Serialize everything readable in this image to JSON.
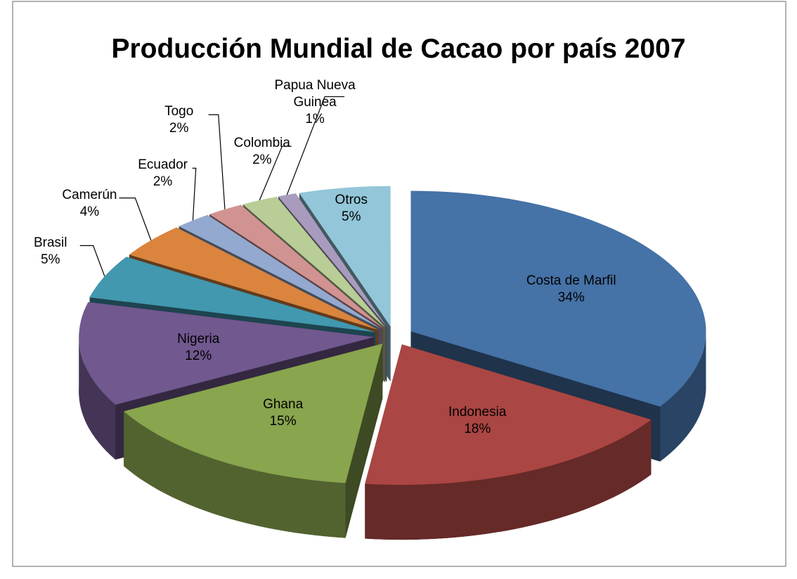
{
  "chart_data": {
    "type": "pie3d",
    "title": "Producción Mundial de Cacao por país 2007",
    "categories": [
      "Costa de Marfil",
      "Indonesia",
      "Ghana",
      "Nigeria",
      "Brasil",
      "Camerún",
      "Ecuador",
      "Togo",
      "Colombia",
      "Papua Nueva Guinea",
      "Otros"
    ],
    "values": [
      34,
      18,
      15,
      12,
      5,
      4,
      2,
      2,
      2,
      1,
      5
    ],
    "value_labels": [
      "34%",
      "18%",
      "15%",
      "12%",
      "5%",
      "4%",
      "2%",
      "2%",
      "2%",
      "1%",
      "5%"
    ],
    "colors": [
      "#4572a7",
      "#aa4643",
      "#89a54e",
      "#71588f",
      "#4198af",
      "#db843d",
      "#93a9cf",
      "#d19392",
      "#b9cd96",
      "#a99bbd",
      "#92c6d8"
    ]
  }
}
